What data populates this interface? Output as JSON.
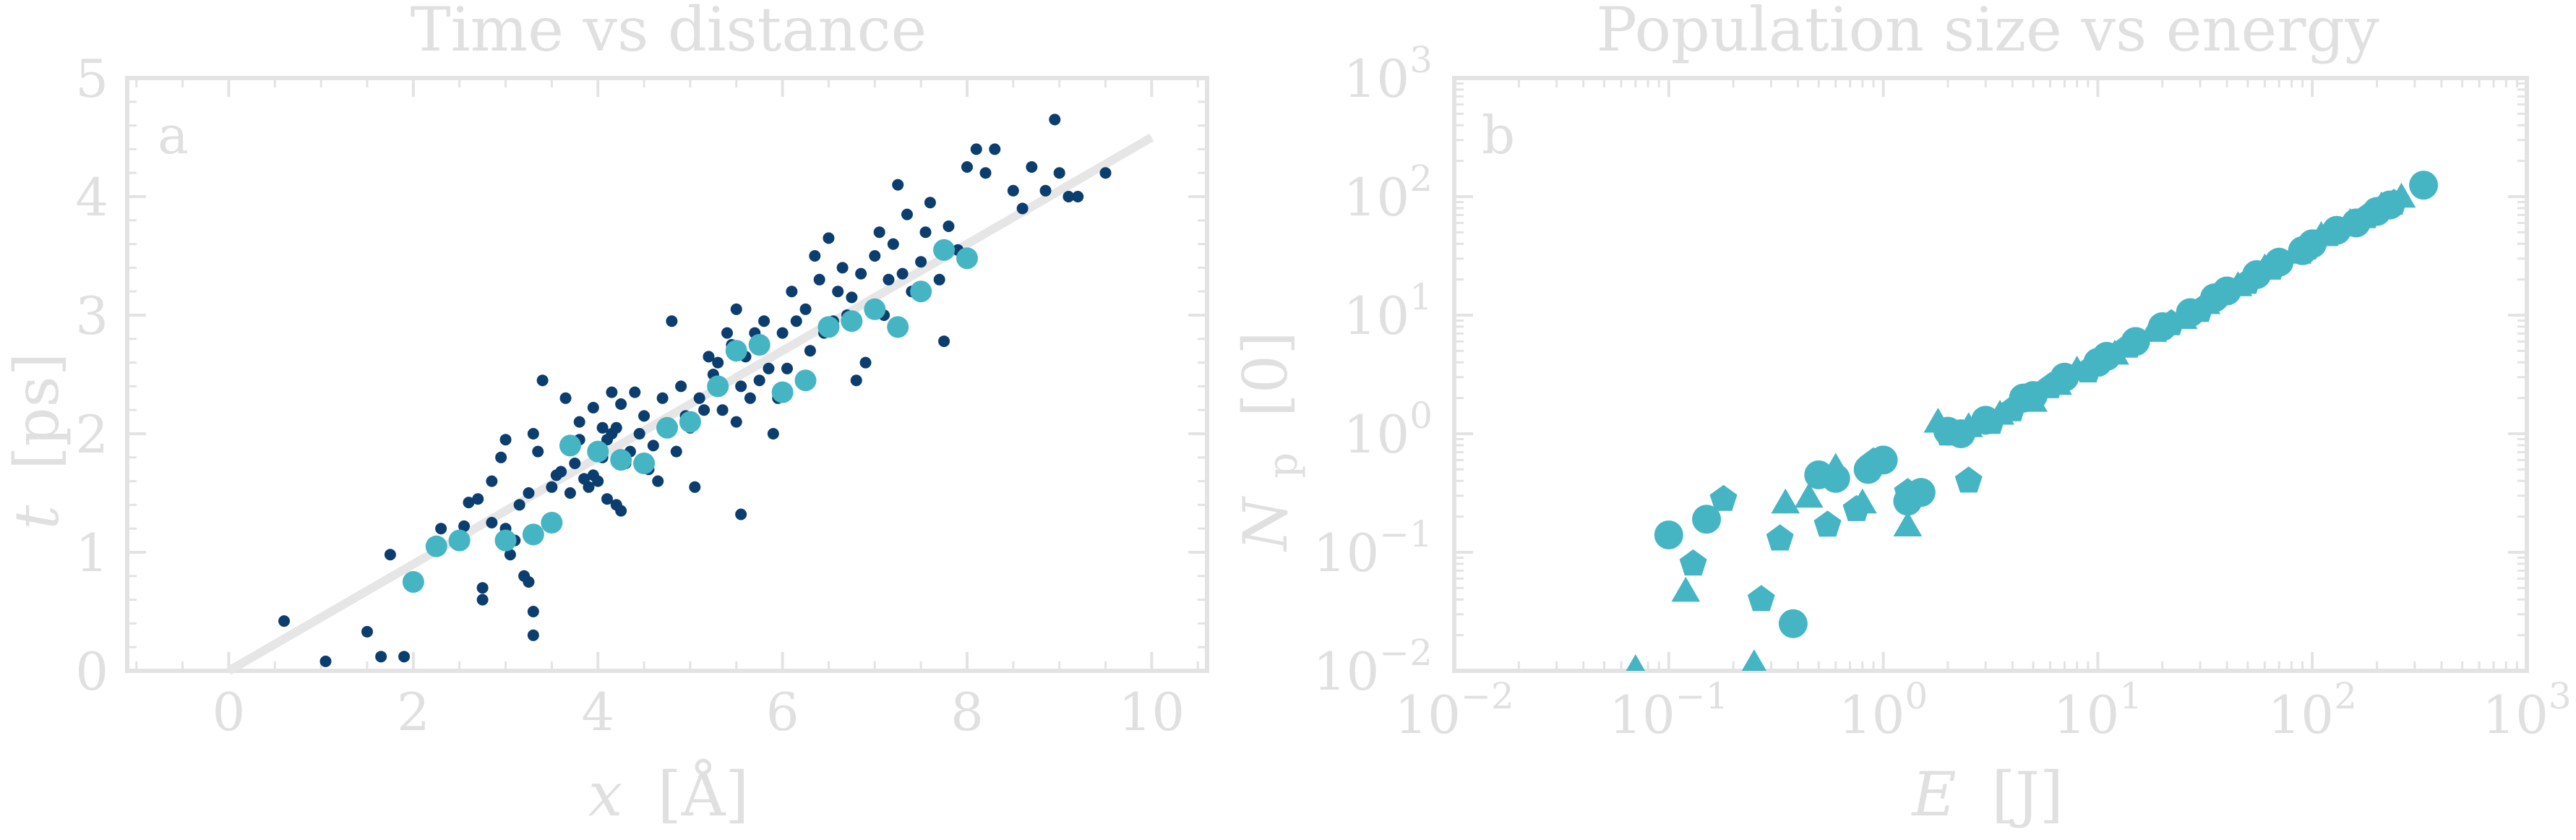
{
  "colors": {
    "axis": "#e3e3e3",
    "text": "#e0e0e0",
    "dark_points": "#0b3d6e",
    "light_points": "#45b5c4",
    "fit_line": "#e6e6e6"
  },
  "chart_data": [
    {
      "type": "scatter",
      "panel_label": "a",
      "title": "Time vs distance",
      "xlabel_var": "x",
      "xlabel_unit": "[Å]",
      "ylabel_var": "t",
      "ylabel_unit": "[ps]",
      "xlim": [
        -1.1,
        10.6
      ],
      "ylim": [
        0,
        5
      ],
      "xticks": [
        0,
        2,
        4,
        6,
        8,
        10
      ],
      "yticks": [
        0,
        1,
        2,
        3,
        4,
        5
      ],
      "grid": false,
      "fit_line": {
        "x": [
          0,
          10
        ],
        "y": [
          0,
          4.5
        ]
      },
      "series": [
        {
          "marker": "small-dot",
          "color": "#0b3d6e",
          "points": [
            [
              0.6,
              0.42
            ],
            [
              1.05,
              0.08
            ],
            [
              1.5,
              0.33
            ],
            [
              1.65,
              0.12
            ],
            [
              1.9,
              0.12
            ],
            [
              1.75,
              0.98
            ],
            [
              2.0,
              0.78
            ],
            [
              2.25,
              1.02
            ],
            [
              2.3,
              1.2
            ],
            [
              2.45,
              1.08
            ],
            [
              2.55,
              1.22
            ],
            [
              2.6,
              1.42
            ],
            [
              2.7,
              1.45
            ],
            [
              2.75,
              0.6
            ],
            [
              2.75,
              0.7
            ],
            [
              2.85,
              1.25
            ],
            [
              2.85,
              1.6
            ],
            [
              2.95,
              1.8
            ],
            [
              3.0,
              1.95
            ],
            [
              3.0,
              1.2
            ],
            [
              3.05,
              0.98
            ],
            [
              3.1,
              1.1
            ],
            [
              3.15,
              1.4
            ],
            [
              3.2,
              0.8
            ],
            [
              3.25,
              0.75
            ],
            [
              3.25,
              1.5
            ],
            [
              3.3,
              0.3
            ],
            [
              3.3,
              0.5
            ],
            [
              3.3,
              2.0
            ],
            [
              3.35,
              1.85
            ],
            [
              3.4,
              2.45
            ],
            [
              3.5,
              1.55
            ],
            [
              3.55,
              1.65
            ],
            [
              3.6,
              1.68
            ],
            [
              3.65,
              2.3
            ],
            [
              3.7,
              1.5
            ],
            [
              3.75,
              1.75
            ],
            [
              3.8,
              1.95
            ],
            [
              3.8,
              2.1
            ],
            [
              3.85,
              1.62
            ],
            [
              3.9,
              1.55
            ],
            [
              3.95,
              1.65
            ],
            [
              3.95,
              2.22
            ],
            [
              4.0,
              1.6
            ],
            [
              4.05,
              1.8
            ],
            [
              4.05,
              2.05
            ],
            [
              4.1,
              1.45
            ],
            [
              4.1,
              1.95
            ],
            [
              4.15,
              2.35
            ],
            [
              4.15,
              2.0
            ],
            [
              4.2,
              1.4
            ],
            [
              4.2,
              2.05
            ],
            [
              4.25,
              1.35
            ],
            [
              4.25,
              2.25
            ],
            [
              4.3,
              1.75
            ],
            [
              4.35,
              1.85
            ],
            [
              4.4,
              2.35
            ],
            [
              4.45,
              2.0
            ],
            [
              4.5,
              2.15
            ],
            [
              4.55,
              1.7
            ],
            [
              4.6,
              1.9
            ],
            [
              4.65,
              1.6
            ],
            [
              4.7,
              2.3
            ],
            [
              4.75,
              2.05
            ],
            [
              4.8,
              2.95
            ],
            [
              4.85,
              1.85
            ],
            [
              4.9,
              2.4
            ],
            [
              4.95,
              2.15
            ],
            [
              5.0,
              2.05
            ],
            [
              5.05,
              1.55
            ],
            [
              5.1,
              2.3
            ],
            [
              5.15,
              2.2
            ],
            [
              5.2,
              2.65
            ],
            [
              5.25,
              2.5
            ],
            [
              5.3,
              2.6
            ],
            [
              5.35,
              2.2
            ],
            [
              5.4,
              2.85
            ],
            [
              5.45,
              2.75
            ],
            [
              5.5,
              2.1
            ],
            [
              5.5,
              3.05
            ],
            [
              5.55,
              2.4
            ],
            [
              5.55,
              1.32
            ],
            [
              5.6,
              2.65
            ],
            [
              5.65,
              2.3
            ],
            [
              5.7,
              2.85
            ],
            [
              5.75,
              2.45
            ],
            [
              5.8,
              2.95
            ],
            [
              5.85,
              2.55
            ],
            [
              5.9,
              2.0
            ],
            [
              5.95,
              2.3
            ],
            [
              6.0,
              2.85
            ],
            [
              6.05,
              2.55
            ],
            [
              6.1,
              3.2
            ],
            [
              6.15,
              2.95
            ],
            [
              6.2,
              2.45
            ],
            [
              6.25,
              3.05
            ],
            [
              6.3,
              2.7
            ],
            [
              6.35,
              3.5
            ],
            [
              6.4,
              3.3
            ],
            [
              6.45,
              2.85
            ],
            [
              6.5,
              3.65
            ],
            [
              6.55,
              2.95
            ],
            [
              6.6,
              3.2
            ],
            [
              6.65,
              3.4
            ],
            [
              6.7,
              3.0
            ],
            [
              6.75,
              3.15
            ],
            [
              6.8,
              2.45
            ],
            [
              6.85,
              3.35
            ],
            [
              6.9,
              2.6
            ],
            [
              7.0,
              3.5
            ],
            [
              7.05,
              3.7
            ],
            [
              7.1,
              3.0
            ],
            [
              7.15,
              3.3
            ],
            [
              7.2,
              3.6
            ],
            [
              7.25,
              4.1
            ],
            [
              7.3,
              3.35
            ],
            [
              7.35,
              3.85
            ],
            [
              7.4,
              3.2
            ],
            [
              7.5,
              3.45
            ],
            [
              7.55,
              3.7
            ],
            [
              7.6,
              3.95
            ],
            [
              7.7,
              3.3
            ],
            [
              7.75,
              2.78
            ],
            [
              7.8,
              3.75
            ],
            [
              7.9,
              3.55
            ],
            [
              8.0,
              4.25
            ],
            [
              8.1,
              4.4
            ],
            [
              8.2,
              4.2
            ],
            [
              8.3,
              4.4
            ],
            [
              8.5,
              4.05
            ],
            [
              8.6,
              3.9
            ],
            [
              8.7,
              4.25
            ],
            [
              8.85,
              4.05
            ],
            [
              8.95,
              4.65
            ],
            [
              9.0,
              4.2
            ],
            [
              9.1,
              4.0
            ],
            [
              9.2,
              4.0
            ],
            [
              9.5,
              4.2
            ]
          ]
        },
        {
          "marker": "large-dot",
          "color": "#45b5c4",
          "points": [
            [
              2.0,
              0.75
            ],
            [
              2.25,
              1.05
            ],
            [
              2.5,
              1.1
            ],
            [
              3.0,
              1.1
            ],
            [
              3.3,
              1.15
            ],
            [
              3.5,
              1.25
            ],
            [
              3.7,
              1.9
            ],
            [
              4.0,
              1.85
            ],
            [
              4.25,
              1.78
            ],
            [
              4.5,
              1.75
            ],
            [
              4.75,
              2.05
            ],
            [
              5.0,
              2.1
            ],
            [
              5.3,
              2.4
            ],
            [
              5.5,
              2.7
            ],
            [
              5.75,
              2.75
            ],
            [
              6.0,
              2.35
            ],
            [
              6.25,
              2.45
            ],
            [
              6.5,
              2.9
            ],
            [
              6.75,
              2.95
            ],
            [
              7.0,
              3.05
            ],
            [
              7.25,
              2.9
            ],
            [
              7.5,
              3.2
            ],
            [
              7.75,
              3.55
            ],
            [
              8.0,
              3.48
            ]
          ]
        }
      ]
    },
    {
      "type": "scatter",
      "panel_label": "b",
      "title": "Population size vs energy",
      "xlabel_var": "E",
      "xlabel_unit": "[J]",
      "ylabel_var": "N",
      "ylabel_sub": "p",
      "ylabel_unit": "[0]",
      "x_scale": "log",
      "y_scale": "log",
      "xlim": [
        0.01,
        1000
      ],
      "ylim": [
        0.01,
        1000
      ],
      "xtick_base": [
        "10",
        "10",
        "10",
        "10",
        "10",
        "10"
      ],
      "xtick_exp": [
        "−2",
        "−1",
        "0",
        "1",
        "2",
        "3"
      ],
      "ytick_base": [
        "10",
        "10",
        "10",
        "10",
        "10",
        "10"
      ],
      "ytick_exp": [
        "−2",
        "−1",
        "0",
        "1",
        "2",
        "3"
      ],
      "grid": false,
      "series": [
        {
          "marker": "circle",
          "color": "#45b5c4",
          "points": [
            [
              0.1,
              0.14
            ],
            [
              0.15,
              0.19
            ],
            [
              0.38,
              0.025
            ],
            [
              0.5,
              0.45
            ],
            [
              0.6,
              0.42
            ],
            [
              0.85,
              0.5
            ],
            [
              1.0,
              0.6
            ],
            [
              1.3,
              0.27
            ],
            [
              1.5,
              0.32
            ],
            [
              2.0,
              1.05
            ],
            [
              2.3,
              1.0
            ],
            [
              3.0,
              1.3
            ],
            [
              4.5,
              2.0
            ],
            [
              5.0,
              2.1
            ],
            [
              7.0,
              3.0
            ],
            [
              10.0,
              4.0
            ],
            [
              11.0,
              4.5
            ],
            [
              15.0,
              6.0
            ],
            [
              20.0,
              8.0
            ],
            [
              27.0,
              10.5
            ],
            [
              35.0,
              14.0
            ],
            [
              40.0,
              16.0
            ],
            [
              55.0,
              22.0
            ],
            [
              70.0,
              28.0
            ],
            [
              90.0,
              35.0
            ],
            [
              100.0,
              40.0
            ],
            [
              130.0,
              52.0
            ],
            [
              160.0,
              60.0
            ],
            [
              200.0,
              75.0
            ],
            [
              230.0,
              85.0
            ],
            [
              330.0,
              125.0
            ]
          ]
        },
        {
          "marker": "triangle",
          "color": "#45b5c4",
          "points": [
            [
              0.07,
              0.01
            ],
            [
              0.12,
              0.045
            ],
            [
              0.25,
              0.011
            ],
            [
              0.35,
              0.25
            ],
            [
              0.45,
              0.28
            ],
            [
              0.6,
              0.5
            ],
            [
              0.8,
              0.25
            ],
            [
              1.3,
              0.16
            ],
            [
              1.8,
              1.2
            ],
            [
              2.5,
              1.1
            ],
            [
              3.5,
              1.4
            ],
            [
              5.0,
              1.8
            ],
            [
              6.5,
              2.5
            ],
            [
              8.0,
              3.3
            ],
            [
              12.0,
              4.5
            ],
            [
              18.0,
              7.0
            ],
            [
              25.0,
              9.0
            ],
            [
              32.0,
              12.0
            ],
            [
              45.0,
              17.0
            ],
            [
              60.0,
              24.0
            ],
            [
              85.0,
              32.0
            ],
            [
              110.0,
              45.0
            ],
            [
              150.0,
              58.0
            ],
            [
              210.0,
              80.0
            ],
            [
              260.0,
              95.0
            ]
          ]
        },
        {
          "marker": "pentagon",
          "color": "#45b5c4",
          "points": [
            [
              0.13,
              0.08
            ],
            [
              0.18,
              0.28
            ],
            [
              0.27,
              0.04
            ],
            [
              0.33,
              0.13
            ],
            [
              0.55,
              0.17
            ],
            [
              0.75,
              0.23
            ],
            [
              0.9,
              0.58
            ],
            [
              1.3,
              0.32
            ],
            [
              2.0,
              1.0
            ],
            [
              2.5,
              0.4
            ],
            [
              3.2,
              1.25
            ],
            [
              4.0,
              1.6
            ],
            [
              6.0,
              2.5
            ],
            [
              9.0,
              3.4
            ],
            [
              14.0,
              5.5
            ],
            [
              22.0,
              8.5
            ],
            [
              30.0,
              11.0
            ],
            [
              50.0,
              19.0
            ],
            [
              65.0,
              25.0
            ],
            [
              95.0,
              37.0
            ],
            [
              120.0,
              48.0
            ],
            [
              180.0,
              68.0
            ],
            [
              240.0,
              88.0
            ]
          ]
        }
      ]
    }
  ]
}
